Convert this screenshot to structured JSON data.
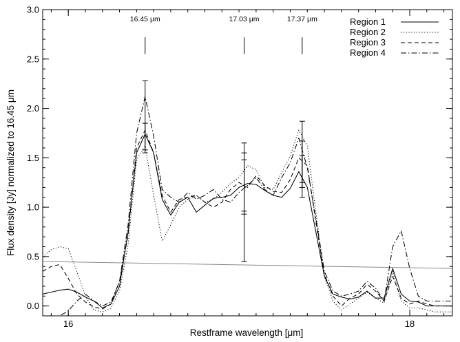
{
  "chart_data": {
    "type": "line",
    "title": "",
    "xlabel": "Restframe wavelength [μm]",
    "ylabel": "Flux density [Jy] normalized to 16.45 μm",
    "xlim": [
      15.85,
      18.25
    ],
    "ylim": [
      -0.1,
      3.0
    ],
    "x_ticks": [
      {
        "value": 16,
        "label": "16"
      },
      {
        "value": 18,
        "label": "18"
      }
    ],
    "x_minor_step": 0.1,
    "y_ticks": [
      {
        "value": 0.0,
        "label": "0.0"
      },
      {
        "value": 0.5,
        "label": "0.5"
      },
      {
        "value": 1.0,
        "label": "1.0"
      },
      {
        "value": 1.5,
        "label": "1.5"
      },
      {
        "value": 2.0,
        "label": "2.0"
      },
      {
        "value": 2.5,
        "label": "2.5"
      },
      {
        "value": 3.0,
        "label": "3.0"
      }
    ],
    "y_minor_step": 0.1,
    "grid": false,
    "legend_position": "top-right",
    "series": [
      {
        "name": "Region 1",
        "dash": "solid",
        "x": [
          15.85,
          15.9,
          15.95,
          16.0,
          16.05,
          16.1,
          16.15,
          16.2,
          16.25,
          16.3,
          16.35,
          16.4,
          16.45,
          16.5,
          16.55,
          16.6,
          16.65,
          16.7,
          16.75,
          16.8,
          16.85,
          16.9,
          16.95,
          17.0,
          17.05,
          17.1,
          17.15,
          17.2,
          17.25,
          17.3,
          17.35,
          17.4,
          17.45,
          17.5,
          17.55,
          17.6,
          17.65,
          17.7,
          17.75,
          17.8,
          17.85,
          17.9,
          17.95,
          18.0,
          18.05,
          18.1,
          18.15,
          18.2,
          18.25
        ],
        "y": [
          0.12,
          0.14,
          0.16,
          0.17,
          0.14,
          0.09,
          0.05,
          -0.02,
          0.02,
          0.2,
          0.75,
          1.55,
          1.74,
          1.55,
          1.08,
          0.92,
          1.05,
          1.1,
          0.95,
          1.02,
          1.09,
          1.1,
          1.12,
          1.2,
          1.24,
          1.23,
          1.17,
          1.12,
          1.1,
          1.19,
          1.36,
          1.2,
          0.75,
          0.3,
          0.12,
          0.09,
          0.07,
          0.09,
          0.15,
          0.08,
          0.08,
          0.38,
          0.12,
          0.05,
          0.04,
          0.0,
          0.0,
          0.0,
          0.0
        ]
      },
      {
        "name": "Region 2",
        "dash": "dotted",
        "x": [
          15.85,
          15.9,
          15.95,
          16.0,
          16.05,
          16.1,
          16.15,
          16.2,
          16.25,
          16.3,
          16.35,
          16.4,
          16.45,
          16.5,
          16.55,
          16.6,
          16.65,
          16.7,
          16.75,
          16.8,
          16.85,
          16.9,
          16.95,
          17.0,
          17.05,
          17.1,
          17.15,
          17.2,
          17.25,
          17.3,
          17.35,
          17.4,
          17.45,
          17.5,
          17.55,
          17.6,
          17.65,
          17.7,
          17.75,
          17.8,
          17.85,
          17.9,
          17.95,
          18.0,
          18.05,
          18.1,
          18.15,
          18.2,
          18.25
        ],
        "y": [
          0.5,
          0.57,
          0.6,
          0.58,
          0.35,
          0.1,
          -0.04,
          -0.06,
          -0.02,
          0.15,
          0.62,
          1.48,
          1.62,
          1.12,
          0.66,
          0.82,
          1.0,
          1.08,
          1.12,
          1.05,
          1.08,
          1.15,
          1.24,
          1.3,
          1.42,
          1.38,
          1.2,
          1.18,
          1.35,
          1.52,
          1.78,
          1.62,
          0.95,
          0.3,
          0.05,
          -0.04,
          0.02,
          0.08,
          0.14,
          0.08,
          0.03,
          0.35,
          0.05,
          -0.02,
          -0.02,
          -0.04,
          -0.06,
          -0.06,
          -0.06
        ]
      },
      {
        "name": "Region 3",
        "dash": "dashed",
        "x": [
          15.85,
          15.9,
          15.95,
          16.0,
          16.05,
          16.1,
          16.15,
          16.2,
          16.25,
          16.3,
          16.35,
          16.4,
          16.45,
          16.5,
          16.55,
          16.6,
          16.65,
          16.7,
          16.75,
          16.8,
          16.85,
          16.9,
          16.95,
          17.0,
          17.05,
          17.1,
          17.15,
          17.2,
          17.25,
          17.3,
          17.35,
          17.4,
          17.45,
          17.5,
          17.55,
          17.6,
          17.65,
          17.7,
          17.75,
          17.8,
          17.85,
          17.9,
          17.95,
          18.0,
          18.05,
          18.1,
          18.15,
          18.2,
          18.25
        ],
        "y": [
          0.35,
          0.4,
          0.42,
          0.28,
          0.12,
          0.04,
          -0.01,
          -0.03,
          0.02,
          0.25,
          0.72,
          1.6,
          1.78,
          1.55,
          1.12,
          0.95,
          1.08,
          1.1,
          1.12,
          1.05,
          1.0,
          1.05,
          1.18,
          1.25,
          1.2,
          1.32,
          1.22,
          1.16,
          1.15,
          1.28,
          1.5,
          1.42,
          0.85,
          0.32,
          0.1,
          0.0,
          0.08,
          0.12,
          0.22,
          0.15,
          0.05,
          0.3,
          0.08,
          0.02,
          0.05,
          0.02,
          0.0,
          0.0,
          0.0
        ]
      },
      {
        "name": "Region 4",
        "dash": "dashdot",
        "x": [
          15.85,
          15.9,
          15.95,
          16.0,
          16.05,
          16.1,
          16.15,
          16.2,
          16.25,
          16.3,
          16.35,
          16.4,
          16.45,
          16.5,
          16.55,
          16.6,
          16.65,
          16.7,
          16.75,
          16.8,
          16.85,
          16.9,
          16.95,
          17.0,
          17.05,
          17.1,
          17.15,
          17.2,
          17.25,
          17.3,
          17.35,
          17.4,
          17.45,
          17.5,
          17.55,
          17.6,
          17.65,
          17.7,
          17.75,
          17.8,
          17.85,
          17.9,
          17.95,
          18.0,
          18.05,
          18.1,
          18.15,
          18.2,
          18.25
        ],
        "y": [
          -0.2,
          -0.15,
          -0.1,
          -0.05,
          0.05,
          0.12,
          0.05,
          0.0,
          0.04,
          0.25,
          0.82,
          1.75,
          2.12,
          1.72,
          1.18,
          1.1,
          1.05,
          1.15,
          1.08,
          1.12,
          1.18,
          1.08,
          1.05,
          1.15,
          1.22,
          1.3,
          1.18,
          1.12,
          1.3,
          1.45,
          1.7,
          1.4,
          0.88,
          0.35,
          0.15,
          0.1,
          0.12,
          0.15,
          0.25,
          0.18,
          0.05,
          0.6,
          0.76,
          0.38,
          0.1,
          0.05,
          0.05,
          0.05,
          0.05
        ]
      }
    ],
    "continuum_line": {
      "x": [
        15.85,
        18.25
      ],
      "y": [
        0.45,
        0.38
      ]
    },
    "error_bars": [
      {
        "x": 16.45,
        "low": 1.55,
        "high": 2.28
      },
      {
        "x": 16.45,
        "low": 1.58,
        "high": 1.85
      },
      {
        "x": 17.03,
        "low": 0.45,
        "high": 1.65
      },
      {
        "x": 17.03,
        "low": 0.93,
        "high": 1.55
      },
      {
        "x": 17.03,
        "low": 0.96,
        "high": 1.48
      },
      {
        "x": 17.37,
        "low": 1.1,
        "high": 1.87
      },
      {
        "x": 17.37,
        "low": 1.2,
        "high": 1.67
      },
      {
        "x": 17.37,
        "low": 1.25,
        "high": 1.52
      }
    ],
    "annotations": [
      {
        "x": 16.45,
        "label": "16.45 μm"
      },
      {
        "x": 17.03,
        "label": "17.03 μm"
      },
      {
        "x": 17.37,
        "label": "17.37 μm"
      }
    ],
    "annotation_marker_y": [
      2.55,
      2.72
    ]
  }
}
